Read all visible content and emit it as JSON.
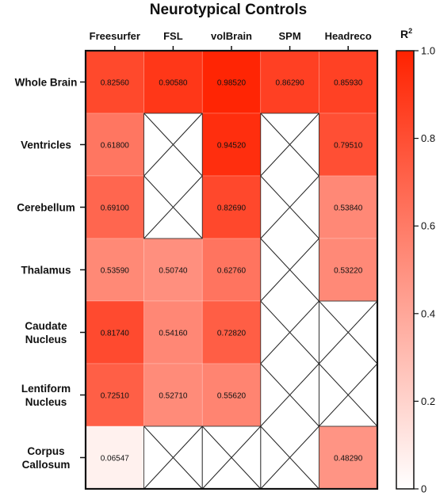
{
  "chart_data": {
    "type": "heatmap",
    "title": "Neurotypical Controls",
    "columns": [
      "Freesurfer",
      "FSL",
      "volBrain",
      "SPM",
      "Headreco"
    ],
    "rows": [
      {
        "lines": [
          "Whole Brain"
        ]
      },
      {
        "lines": [
          "Ventricles"
        ]
      },
      {
        "lines": [
          "Cerebellum"
        ]
      },
      {
        "lines": [
          "Thalamus"
        ]
      },
      {
        "lines": [
          "Caudate",
          "Nucleus"
        ]
      },
      {
        "lines": [
          "Lentiform",
          "Nucleus"
        ]
      },
      {
        "lines": [
          "Corpus",
          "Callosum"
        ]
      }
    ],
    "values": [
      [
        0.8256,
        0.9058,
        0.9852,
        0.8629,
        0.8593
      ],
      [
        0.618,
        null,
        0.9452,
        null,
        0.7951
      ],
      [
        0.691,
        null,
        0.8269,
        null,
        0.5384
      ],
      [
        0.5359,
        0.5074,
        0.6276,
        null,
        0.5322
      ],
      [
        0.8174,
        0.5416,
        0.7282,
        null,
        null
      ],
      [
        0.7251,
        0.5271,
        0.5562,
        null,
        null
      ],
      [
        0.06547,
        null,
        null,
        null,
        0.4829
      ]
    ],
    "value_labels": [
      [
        "0.82560",
        "0.90580",
        "0.98520",
        "0.86290",
        "0.85930"
      ],
      [
        "0.61800",
        "",
        "0.94520",
        "",
        "0.79510"
      ],
      [
        "0.69100",
        "",
        "0.82690",
        "",
        "0.53840"
      ],
      [
        "0.53590",
        "0.50740",
        "0.62760",
        "",
        "0.53220"
      ],
      [
        "0.81740",
        "0.54160",
        "0.72820",
        "",
        ""
      ],
      [
        "0.72510",
        "0.52710",
        "0.55620",
        "",
        ""
      ],
      [
        "0.06547",
        "",
        "",
        "",
        "0.48290"
      ]
    ],
    "missing_marker": "cross",
    "colorbar": {
      "title": "R",
      "title_superscript": "2",
      "range": [
        0,
        1
      ],
      "ticks": [
        "0",
        "0.2",
        "0.4",
        "0.6",
        "0.8",
        "1.0"
      ],
      "colors": [
        "#ffffff",
        "#ff2200"
      ]
    }
  }
}
